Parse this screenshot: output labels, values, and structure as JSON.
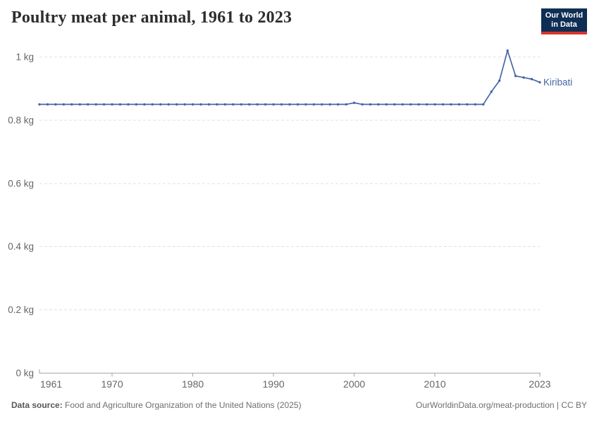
{
  "header": {
    "title": "Poultry meat per animal, 1961 to 2023",
    "logo": {
      "line1": "Our World",
      "line2": "in Data",
      "bg_color": "#0f2e54",
      "stripe_color": "#d8352f",
      "text_color": "#ffffff"
    }
  },
  "chart_data": {
    "type": "line",
    "title": "Poultry meat per animal, 1961 to 2023",
    "unit": "kg",
    "x": [
      1961,
      1962,
      1963,
      1964,
      1965,
      1966,
      1967,
      1968,
      1969,
      1970,
      1971,
      1972,
      1973,
      1974,
      1975,
      1976,
      1977,
      1978,
      1979,
      1980,
      1981,
      1982,
      1983,
      1984,
      1985,
      1986,
      1987,
      1988,
      1989,
      1990,
      1991,
      1992,
      1993,
      1994,
      1995,
      1996,
      1997,
      1998,
      1999,
      2000,
      2001,
      2002,
      2003,
      2004,
      2005,
      2006,
      2007,
      2008,
      2009,
      2010,
      2011,
      2012,
      2013,
      2014,
      2015,
      2016,
      2017,
      2018,
      2019,
      2020,
      2021,
      2022,
      2023
    ],
    "series": [
      {
        "name": "Kiribati",
        "color": "#4667a5",
        "values": [
          0.85,
          0.85,
          0.85,
          0.85,
          0.85,
          0.85,
          0.85,
          0.85,
          0.85,
          0.85,
          0.85,
          0.85,
          0.85,
          0.85,
          0.85,
          0.85,
          0.85,
          0.85,
          0.85,
          0.85,
          0.85,
          0.85,
          0.85,
          0.85,
          0.85,
          0.85,
          0.85,
          0.85,
          0.85,
          0.85,
          0.85,
          0.85,
          0.85,
          0.85,
          0.85,
          0.85,
          0.85,
          0.85,
          0.85,
          0.855,
          0.85,
          0.85,
          0.85,
          0.85,
          0.85,
          0.85,
          0.85,
          0.85,
          0.85,
          0.85,
          0.85,
          0.85,
          0.85,
          0.85,
          0.85,
          0.85,
          0.89,
          0.925,
          1.02,
          0.94,
          0.935,
          0.93,
          0.92
        ]
      }
    ],
    "xlabel": "",
    "ylabel": "",
    "ylim": [
      0,
      1.05
    ],
    "xlim": [
      1961,
      2023
    ],
    "yticks": [
      {
        "value": 0,
        "label": "0 kg"
      },
      {
        "value": 0.2,
        "label": "0.2 kg"
      },
      {
        "value": 0.4,
        "label": "0.4 kg"
      },
      {
        "value": 0.6,
        "label": "0.6 kg"
      },
      {
        "value": 0.8,
        "label": "0.8 kg"
      },
      {
        "value": 1,
        "label": "1 kg"
      }
    ],
    "xticks": [
      {
        "value": 1961,
        "label": "1961"
      },
      {
        "value": 1970,
        "label": "1970"
      },
      {
        "value": 1980,
        "label": "1980"
      },
      {
        "value": 1990,
        "label": "1990"
      },
      {
        "value": 2000,
        "label": "2000"
      },
      {
        "value": 2010,
        "label": "2010"
      },
      {
        "value": 2023,
        "label": "2023"
      }
    ],
    "grid": "horizontal-dashed",
    "legend_position": "line-end-label"
  },
  "colors": {
    "axis": "#a6a6a6",
    "gridline": "#e0e0e0",
    "tick_label": "#666666"
  },
  "footer": {
    "source_label": "Data source:",
    "source_text": "Food and Agriculture Organization of the United Nations (2025)",
    "credit": "OurWorldinData.org/meat-production | CC BY"
  }
}
